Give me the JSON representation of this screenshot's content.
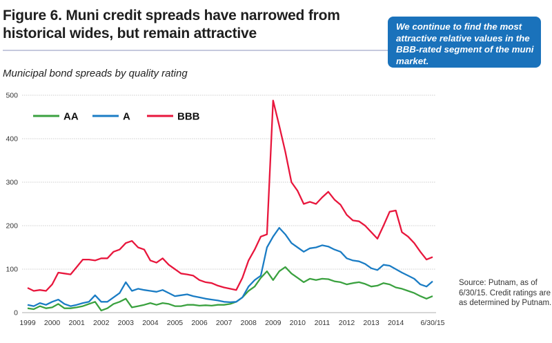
{
  "header": {
    "title": "Figure 6. Muni credit spreads have narrowed from historical wides, but remain attractive",
    "callout": "We continue to find the most attractive relative values in the BBB-rated segment of the muni market.",
    "subtitle": "Municipal bond spreads by quality rating",
    "source": "Source: Putnam, as of 6/30/15. Credit ratings are as determined by Putnam."
  },
  "chart_data": {
    "type": "line",
    "title": "Municipal bond spreads by quality rating",
    "xlabel": "",
    "ylabel": "",
    "ylim": [
      0,
      500
    ],
    "yticks": [
      0,
      100,
      200,
      300,
      400,
      500
    ],
    "xlim": [
      1998.95,
      2015.5
    ],
    "xticks": [
      {
        "value": 1999,
        "label": "1999"
      },
      {
        "value": 2000,
        "label": "2000"
      },
      {
        "value": 2001,
        "label": "2001"
      },
      {
        "value": 2002,
        "label": "2002"
      },
      {
        "value": 2003,
        "label": "2003"
      },
      {
        "value": 2004,
        "label": "2004"
      },
      {
        "value": 2005,
        "label": "2005"
      },
      {
        "value": 2006,
        "label": "2006"
      },
      {
        "value": 2007,
        "label": "2007"
      },
      {
        "value": 2008,
        "label": "2008"
      },
      {
        "value": 2009,
        "label": "2009"
      },
      {
        "value": 2010,
        "label": "2010"
      },
      {
        "value": 2011,
        "label": "2011"
      },
      {
        "value": 2012,
        "label": "2012"
      },
      {
        "value": 2013,
        "label": "2013"
      },
      {
        "value": 2014,
        "label": "2014"
      },
      {
        "value": 2015.5,
        "label": "6/30/15"
      }
    ],
    "grid": true,
    "legend_position": "top-left",
    "x": [
      1999.0,
      1999.25,
      1999.5,
      1999.75,
      2000.0,
      2000.25,
      2000.5,
      2000.75,
      2001.0,
      2001.25,
      2001.5,
      2001.75,
      2002.0,
      2002.25,
      2002.5,
      2002.75,
      2003.0,
      2003.25,
      2003.5,
      2003.75,
      2004.0,
      2004.25,
      2004.5,
      2004.75,
      2005.0,
      2005.25,
      2005.5,
      2005.75,
      2006.0,
      2006.25,
      2006.5,
      2006.75,
      2007.0,
      2007.25,
      2007.5,
      2007.75,
      2008.0,
      2008.25,
      2008.5,
      2008.75,
      2009.0,
      2009.25,
      2009.5,
      2009.75,
      2010.0,
      2010.25,
      2010.5,
      2010.75,
      2011.0,
      2011.25,
      2011.5,
      2011.75,
      2012.0,
      2012.25,
      2012.5,
      2012.75,
      2013.0,
      2013.25,
      2013.5,
      2013.75,
      2014.0,
      2014.25,
      2014.5,
      2014.75,
      2015.0,
      2015.25,
      2015.5
    ],
    "series": [
      {
        "name": "AA",
        "color": "#3aa13f",
        "values": [
          10,
          8,
          15,
          10,
          12,
          20,
          10,
          10,
          12,
          15,
          20,
          25,
          5,
          10,
          20,
          25,
          32,
          12,
          15,
          18,
          22,
          18,
          22,
          20,
          15,
          15,
          18,
          18,
          16,
          17,
          16,
          18,
          18,
          20,
          25,
          35,
          50,
          60,
          80,
          95,
          75,
          95,
          105,
          90,
          80,
          70,
          78,
          75,
          78,
          77,
          72,
          70,
          65,
          68,
          70,
          66,
          60,
          62,
          68,
          65,
          58,
          55,
          50,
          45,
          38,
          32,
          38
        ]
      },
      {
        "name": "A",
        "color": "#1a7cc4",
        "values": [
          18,
          15,
          22,
          18,
          25,
          30,
          20,
          15,
          18,
          22,
          25,
          40,
          25,
          25,
          35,
          45,
          70,
          50,
          55,
          52,
          50,
          48,
          52,
          45,
          38,
          40,
          42,
          38,
          35,
          32,
          30,
          28,
          25,
          24,
          25,
          35,
          60,
          75,
          85,
          150,
          175,
          195,
          180,
          160,
          150,
          140,
          148,
          150,
          155,
          152,
          145,
          140,
          125,
          120,
          118,
          112,
          102,
          98,
          110,
          108,
          100,
          92,
          85,
          78,
          65,
          60,
          72
        ]
      },
      {
        "name": "BBB",
        "color": "#e8163c",
        "values": [
          57,
          50,
          52,
          50,
          65,
          92,
          90,
          88,
          105,
          122,
          122,
          120,
          125,
          125,
          140,
          145,
          160,
          165,
          150,
          145,
          120,
          115,
          125,
          110,
          100,
          90,
          88,
          85,
          75,
          70,
          68,
          62,
          58,
          55,
          52,
          80,
          120,
          145,
          175,
          180,
          488,
          430,
          370,
          300,
          280,
          250,
          255,
          250,
          265,
          278,
          260,
          248,
          225,
          212,
          210,
          200,
          185,
          170,
          200,
          232,
          235,
          185,
          175,
          160,
          140,
          122,
          128
        ]
      }
    ]
  }
}
